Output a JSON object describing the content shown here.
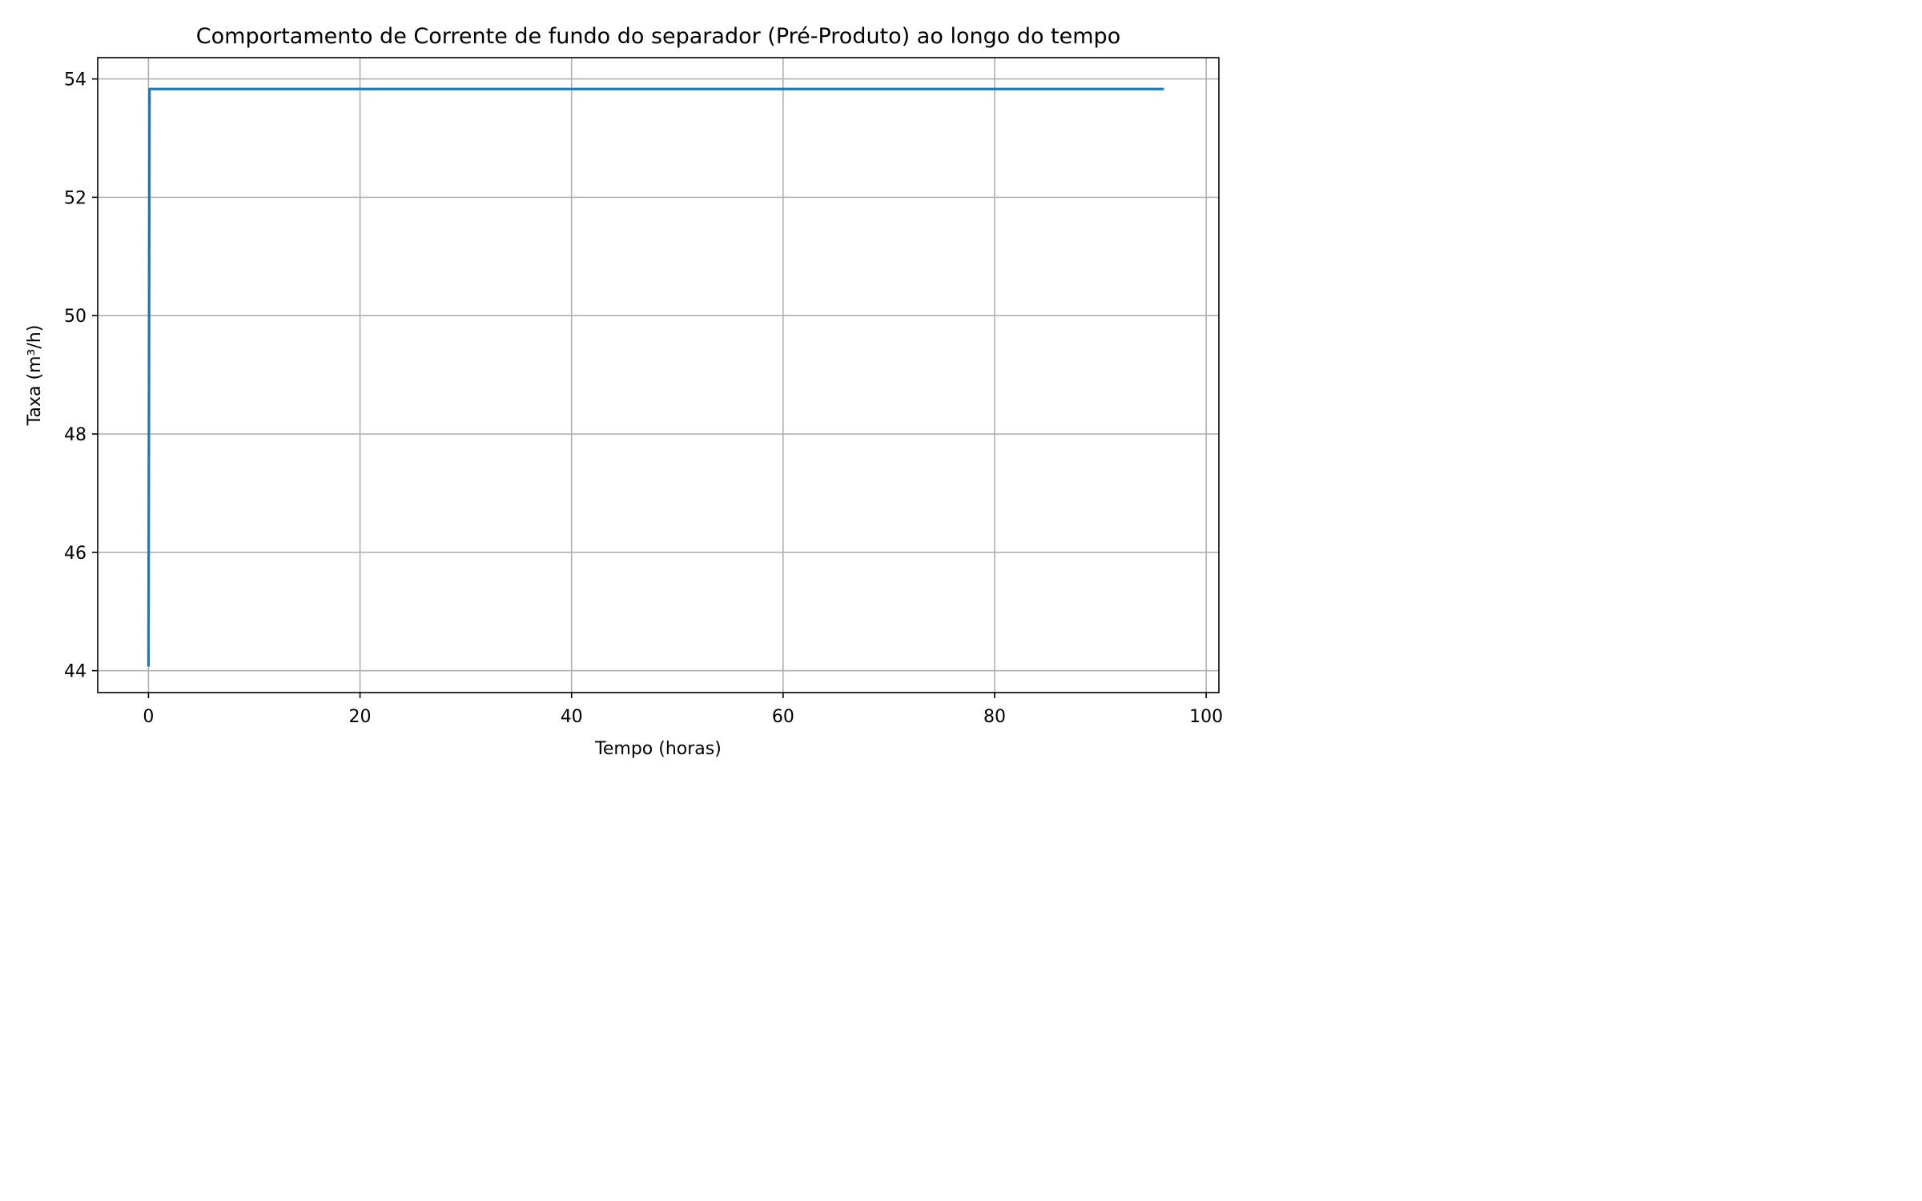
{
  "chart_data": {
    "type": "line",
    "title": "Comportamento de Corrente de fundo do separador (Pré-Produto) ao longo do tempo",
    "xlabel": "Tempo (horas)",
    "ylabel": "Taxa (m³/h)",
    "xlim": [
      -4.8,
      101.2
    ],
    "ylim": [
      43.63,
      54.36
    ],
    "xticks": [
      0,
      20,
      40,
      60,
      80,
      100
    ],
    "yticks": [
      44,
      46,
      48,
      50,
      52,
      54
    ],
    "grid": true,
    "series": [
      {
        "color": "#1f77b4",
        "x": [
          0,
          0.1,
          0.2,
          96
        ],
        "y": [
          44.07,
          53.83,
          53.83,
          53.83
        ]
      }
    ]
  }
}
